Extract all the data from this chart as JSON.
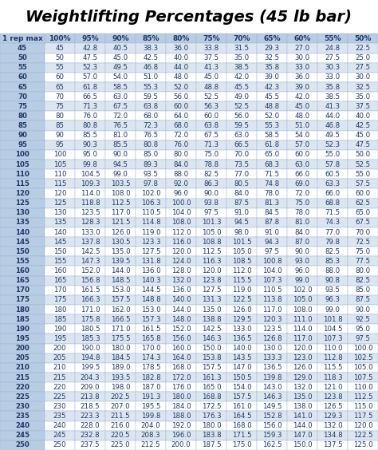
{
  "title": "Weightlifting Percentages (45 lb bar)",
  "headers": [
    "1 rep max",
    "100%",
    "95%",
    "90%",
    "85%",
    "80%",
    "75%",
    "70%",
    "65%",
    "60%",
    "55%",
    "50%"
  ],
  "one_rep_maxes": [
    45,
    50,
    55,
    60,
    65,
    70,
    75,
    80,
    85,
    90,
    95,
    100,
    105,
    110,
    115,
    120,
    125,
    130,
    135,
    140,
    145,
    150,
    155,
    160,
    165,
    170,
    175,
    180,
    185,
    190,
    195,
    200,
    205,
    210,
    215,
    220,
    225,
    230,
    235,
    240,
    245,
    250
  ],
  "percentages": [
    1.0,
    0.95,
    0.9,
    0.85,
    0.8,
    0.75,
    0.7,
    0.65,
    0.6,
    0.55,
    0.5
  ],
  "header_bg": "#b8cce4",
  "row_bg_even": "#dce6f1",
  "row_bg_odd": "#ffffff",
  "col0_bg": "#b8cce4",
  "text_color": "#1f3864",
  "title_color": "#000000",
  "title_fontsize": 14,
  "header_fontsize": 6.5,
  "cell_fontsize": 6.2,
  "border_color": "#9ab3d5"
}
